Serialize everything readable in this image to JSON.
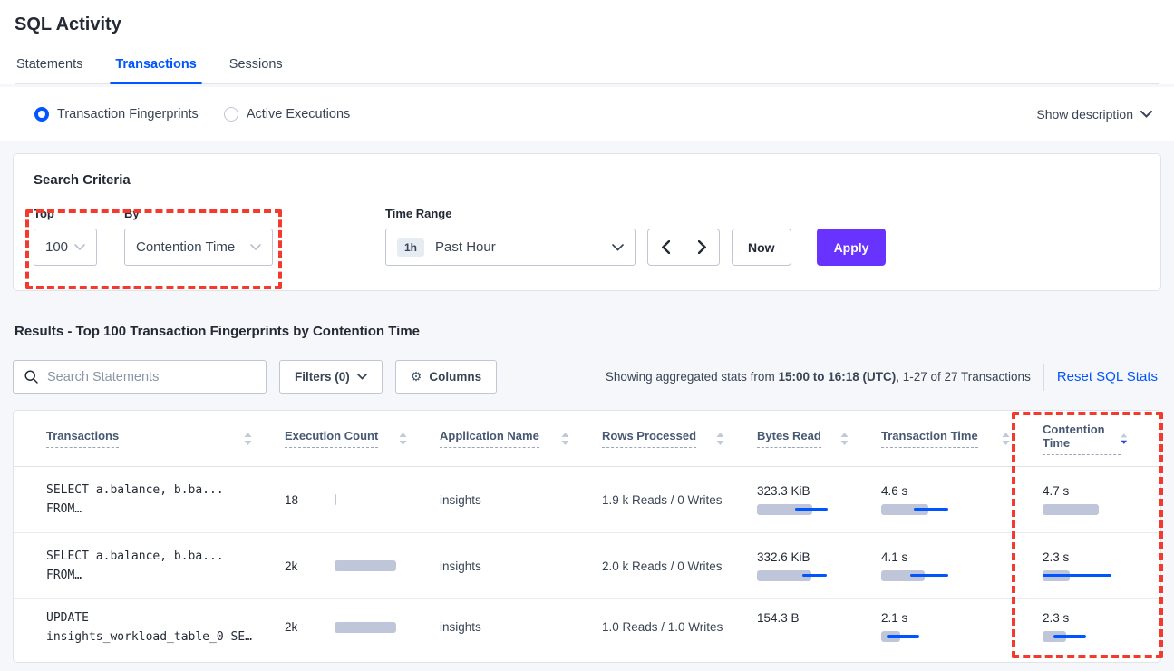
{
  "page": {
    "title": "SQL Activity"
  },
  "tabs": [
    {
      "label": "Statements",
      "active": false
    },
    {
      "label": "Transactions",
      "active": true
    },
    {
      "label": "Sessions",
      "active": false
    }
  ],
  "view_toggle": {
    "options": [
      {
        "label": "Transaction Fingerprints",
        "selected": true
      },
      {
        "label": "Active Executions",
        "selected": false
      }
    ],
    "show_description_label": "Show description"
  },
  "search_criteria": {
    "title": "Search Criteria",
    "top": {
      "label": "Top",
      "value": "100"
    },
    "by": {
      "label": "By",
      "value": "Contention Time"
    },
    "time_range": {
      "label": "Time Range",
      "badge": "1h",
      "value": "Past Hour"
    },
    "now_label": "Now",
    "apply_label": "Apply"
  },
  "results": {
    "heading": "Results - Top 100 Transaction Fingerprints by Contention Time",
    "search_placeholder": "Search Statements",
    "filters_label": "Filters (0)",
    "columns_label": "Columns",
    "stats_prefix": "Showing aggregated stats from ",
    "stats_bold": "15:00 to 16:18 (UTC)",
    "stats_suffix": ", 1-27 of 27 Transactions",
    "reset_link": "Reset SQL Stats"
  },
  "table": {
    "columns": [
      {
        "label": "Transactions",
        "sorted": null
      },
      {
        "label": "Execution Count",
        "sorted": null
      },
      {
        "label": "Application Name",
        "sorted": null
      },
      {
        "label": "Rows Processed",
        "sorted": null
      },
      {
        "label": "Bytes Read",
        "sorted": null
      },
      {
        "label": "Transaction Time",
        "sorted": null
      },
      {
        "label": "Contention Time",
        "sorted": "desc"
      }
    ],
    "rows": [
      {
        "transaction_line1": "SELECT a.balance, b.ba...",
        "transaction_line2": "FROM…",
        "execution_count": "18",
        "execution_bar": {
          "bar": 2
        },
        "application_name": "insights",
        "rows_processed": "1.9 k Reads / 0 Writes",
        "bytes_read": {
          "value": "323.3 KiB",
          "bar": 61,
          "line": [
            42,
            78
          ]
        },
        "transaction_time": {
          "value": "4.6 s",
          "bar": 52,
          "line": [
            36,
            74
          ]
        },
        "contention_time": {
          "value": "4.7 s",
          "bar": 62,
          "line": null
        }
      },
      {
        "transaction_line1": "SELECT a.balance, b.ba...",
        "transaction_line2": "FROM…",
        "execution_count": "2k",
        "execution_bar": {
          "bar": 68
        },
        "application_name": "insights",
        "rows_processed": "2.0 k Reads / 0 Writes",
        "bytes_read": {
          "value": "332.6 KiB",
          "bar": 60,
          "line": [
            50,
            77
          ]
        },
        "transaction_time": {
          "value": "4.1 s",
          "bar": 48,
          "line": [
            32,
            74
          ]
        },
        "contention_time": {
          "value": "2.3 s",
          "bar": 30,
          "line": [
            0,
            76
          ]
        }
      },
      {
        "transaction_line1": "UPDATE",
        "transaction_line2": "insights_workload_table_0 SE…",
        "execution_count": "2k",
        "execution_bar": {
          "bar": 68
        },
        "application_name": "insights",
        "rows_processed": "1.0 Reads / 1.0 Writes",
        "bytes_read": {
          "value": "154.3 B",
          "bar": 0,
          "line": null
        },
        "transaction_time": {
          "value": "2.1 s",
          "bar": 21,
          "line": [
            6,
            42
          ]
        },
        "contention_time": {
          "value": "2.3 s",
          "bar": 26,
          "line": [
            12,
            48
          ]
        }
      }
    ]
  },
  "colors": {
    "accent_blue": "#0055ff",
    "accent_purple": "#6933ff",
    "bar_gray": "#c0c6d9",
    "bar_line_blue": "#0055ff",
    "highlight_red": "#f23b2e"
  }
}
